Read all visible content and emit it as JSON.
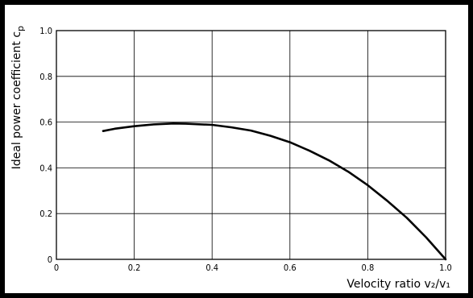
{
  "chart_data": {
    "type": "line",
    "title": "",
    "xlabel": "Velocity ratio v₂/v₁",
    "ylabel": "Ideal power coefficient c",
    "ylabel_subscript": "p",
    "xlim": [
      0,
      1.0
    ],
    "ylim": [
      0,
      1.0
    ],
    "x_ticks": [
      0,
      0.2,
      0.4,
      0.6,
      0.8,
      1.0
    ],
    "x_tick_labels": [
      "0",
      "0.2",
      "0.4",
      "0.6",
      "0.8",
      "1.0"
    ],
    "y_ticks": [
      0,
      0.2,
      0.4,
      0.6,
      0.8,
      1.0
    ],
    "y_tick_labels": [
      "0",
      "0.2",
      "0.4",
      "0.6",
      "0.8",
      "1.0"
    ],
    "grid": true,
    "series": [
      {
        "color": "#000000",
        "x": [
          0.12,
          0.15,
          0.2,
          0.25,
          0.3,
          0.333,
          0.4,
          0.45,
          0.5,
          0.55,
          0.6,
          0.65,
          0.7,
          0.75,
          0.8,
          0.85,
          0.9,
          0.95,
          1.0
        ],
        "y": [
          0.561,
          0.571,
          0.582,
          0.59,
          0.594,
          0.593,
          0.588,
          0.577,
          0.563,
          0.54,
          0.512,
          0.475,
          0.433,
          0.383,
          0.324,
          0.256,
          0.182,
          0.096,
          0.0
        ]
      }
    ]
  }
}
